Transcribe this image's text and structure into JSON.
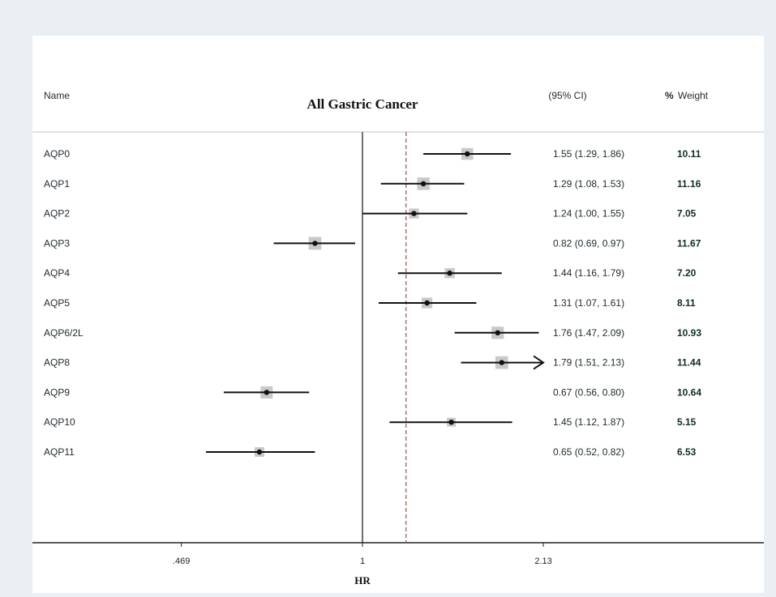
{
  "chart_data": {
    "type": "forest",
    "title": "All Gastric Cancer",
    "header": {
      "name": "Name",
      "ci": "(95% CI)",
      "pct": "%",
      "weight": "Weight"
    },
    "xlabel": "HR",
    "xscale": "log",
    "xticks": [
      {
        "value": 0.469,
        "label": ".469"
      },
      {
        "value": 1,
        "label": "1"
      },
      {
        "value": 2.13,
        "label": "2.13"
      }
    ],
    "null_line": 1,
    "overall_line": 1.2,
    "rows": [
      {
        "name": "AQP0",
        "hr": 1.55,
        "lo": 1.29,
        "hi": 1.86,
        "ci_text": "1.55 (1.29, 1.86)",
        "weight": "10.11"
      },
      {
        "name": "AQP1",
        "hr": 1.29,
        "lo": 1.08,
        "hi": 1.53,
        "ci_text": "1.29 (1.08, 1.53)",
        "weight": "11.16"
      },
      {
        "name": "AQP2",
        "hr": 1.24,
        "lo": 1.0,
        "hi": 1.55,
        "ci_text": "1.24 (1.00, 1.55)",
        "weight": "7.05"
      },
      {
        "name": "AQP3",
        "hr": 0.82,
        "lo": 0.69,
        "hi": 0.97,
        "ci_text": "0.82 (0.69, 0.97)",
        "weight": "11.67"
      },
      {
        "name": "AQP4",
        "hr": 1.44,
        "lo": 1.16,
        "hi": 1.79,
        "ci_text": "1.44 (1.16, 1.79)",
        "weight": "7.20"
      },
      {
        "name": "AQP5",
        "hr": 1.31,
        "lo": 1.07,
        "hi": 1.61,
        "ci_text": "1.31 (1.07, 1.61)",
        "weight": "8.11"
      },
      {
        "name": "AQP6/2L",
        "hr": 1.76,
        "lo": 1.47,
        "hi": 2.09,
        "ci_text": "1.76 (1.47, 2.09)",
        "weight": "10.93"
      },
      {
        "name": "AQP8",
        "hr": 1.79,
        "lo": 1.51,
        "hi": 2.13,
        "ci_text": "1.79 (1.51, 2.13)",
        "weight": "11.44",
        "arrow_right": true
      },
      {
        "name": "AQP9",
        "hr": 0.67,
        "lo": 0.56,
        "hi": 0.8,
        "ci_text": "0.67 (0.56, 0.80)",
        "weight": "10.64"
      },
      {
        "name": "AQP10",
        "hr": 1.45,
        "lo": 1.12,
        "hi": 1.87,
        "ci_text": "1.45 (1.12, 1.87)",
        "weight": "5.15"
      },
      {
        "name": "AQP11",
        "hr": 0.65,
        "lo": 0.52,
        "hi": 0.82,
        "ci_text": "0.65 (0.52, 0.82)",
        "weight": "6.53"
      }
    ],
    "colors": {
      "background": "#e9eff2",
      "box": "#c9c9c9",
      "ref_line": "#9e4a4a"
    }
  }
}
